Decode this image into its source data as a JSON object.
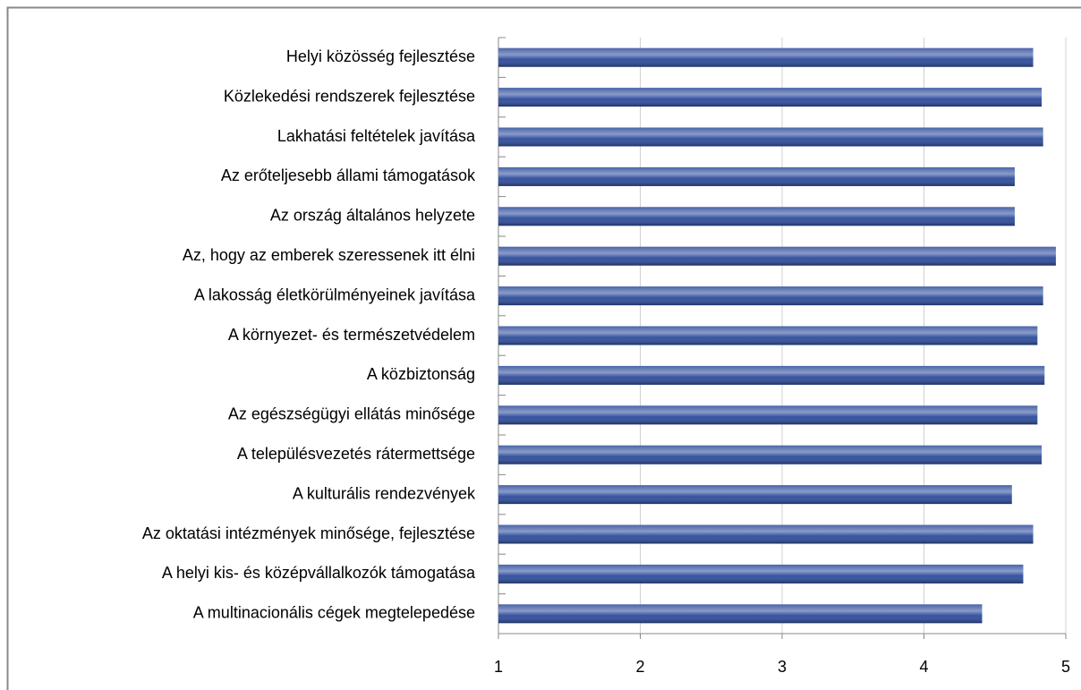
{
  "chart_data": {
    "type": "hbar",
    "categories": [
      "Helyi közösség fejlesztése",
      "Közlekedési rendszerek fejlesztése",
      "Lakhatási feltételek javítása",
      "Az erőteljesebb állami támogatások",
      "Az ország általános helyzete",
      "Az, hogy az emberek szeressenek itt élni",
      "A lakosság életkörülményeinek javítása",
      "A környezet- és természetvédelem",
      "A közbiztonság",
      "Az egészségügyi ellátás minősége",
      "A településvezetés rátermettsége",
      "A kulturális rendezvények",
      "Az oktatási intézmények minősége, fejlesztése",
      "A helyi kis- és középvállalkozók támogatása",
      "A multinacionális cégek megtelepedése"
    ],
    "values": [
      4.77,
      4.83,
      4.84,
      4.64,
      4.64,
      4.93,
      4.84,
      4.8,
      4.85,
      4.8,
      4.83,
      4.62,
      4.77,
      4.7,
      4.41
    ],
    "color": "#2b4a9b",
    "xlim": [
      1,
      5
    ],
    "xticks": [
      1,
      2,
      3,
      4,
      5
    ],
    "grid": true
  }
}
